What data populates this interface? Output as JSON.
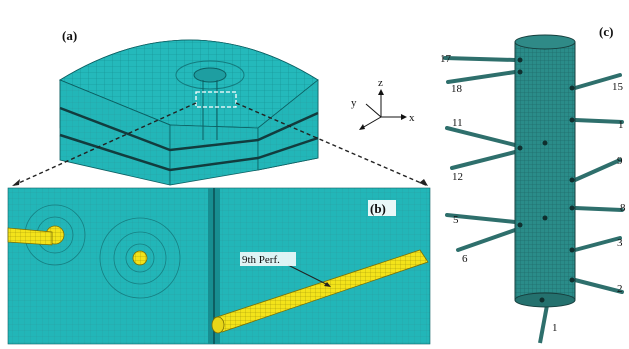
{
  "panels": {
    "a": "(a)",
    "b": "(b)",
    "c": "(c)"
  },
  "axes": {
    "z": "z",
    "y": "y",
    "x": "x"
  },
  "annotation": "9th Perf.",
  "tube_labels": {
    "left": [
      "17",
      "18",
      "11",
      "12",
      "5",
      "6"
    ],
    "right": [
      "15",
      "1",
      "9",
      "8",
      "3",
      "2"
    ],
    "bottom": "1"
  },
  "colors": {
    "mesh": "#22b7b9",
    "mesh_dark": "#0f6f72",
    "perforation": "#f3e31a",
    "tube": "#2e6f6c"
  }
}
